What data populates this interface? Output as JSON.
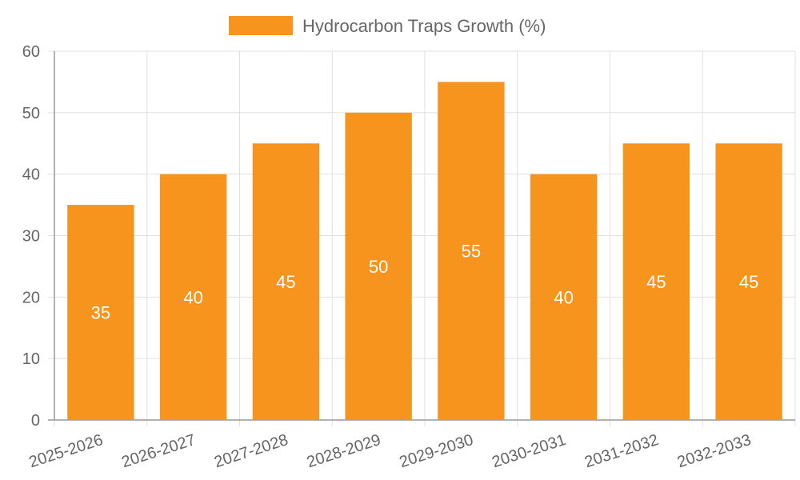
{
  "chart_data": {
    "type": "bar",
    "categories": [
      "2025-2026",
      "2026-2027",
      "2027-2028",
      "2028-2029",
      "2029-2030",
      "2030-2031",
      "2031-2032",
      "2032-2033"
    ],
    "series": [
      {
        "name": "Hydrocarbon Traps Growth (%)",
        "values": [
          35,
          40,
          45,
          50,
          55,
          40,
          45,
          45
        ]
      }
    ],
    "ylim": [
      0,
      60
    ],
    "yticks": [
      0,
      10,
      20,
      30,
      40,
      50,
      60
    ],
    "grid": true,
    "legend_position": "top",
    "bar_color": "#f7941e",
    "grid_color": "#e0e0e0",
    "axis_color": "#999999",
    "text_color": "#666666",
    "data_label_color": "#ffffff"
  }
}
